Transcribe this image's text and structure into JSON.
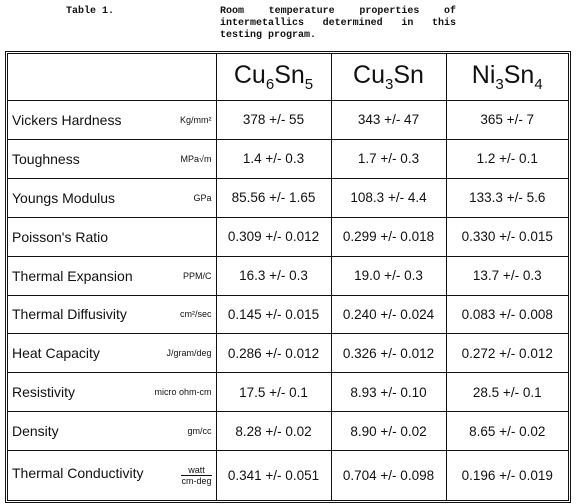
{
  "caption": {
    "label": "Table 1.",
    "text": "Room temperature properties of intermetallics determined in this testing program."
  },
  "table": {
    "columns": [
      "Cu6Sn5",
      "Cu3Sn",
      "Ni3Sn4"
    ],
    "rows": [
      {
        "property": "Vickers Hardness",
        "unit": "Kg/mm²",
        "values": [
          "378 +/- 55",
          "343 +/- 47",
          "365 +/- 7"
        ]
      },
      {
        "property": "Toughness",
        "unit": "MPa√m",
        "values": [
          "1.4 +/- 0.3",
          "1.7 +/- 0.3",
          "1.2 +/- 0.1"
        ]
      },
      {
        "property": "Youngs Modulus",
        "unit": "GPa",
        "values": [
          "85.56 +/- 1.65",
          "108.3 +/- 4.4",
          "133.3 +/- 5.6"
        ]
      },
      {
        "property": "Poisson's Ratio",
        "values": [
          "0.309 +/- 0.012",
          "0.299 +/- 0.018",
          "0.330 +/- 0.015"
        ]
      },
      {
        "property": "Thermal Expansion",
        "unit": "PPM/C",
        "values": [
          "16.3 +/- 0.3",
          "19.0 +/- 0.3",
          "13.7 +/- 0.3"
        ]
      },
      {
        "property": "Thermal Diffusivity",
        "unit": "cm²/sec",
        "values": [
          "0.145 +/- 0.015",
          "0.240 +/- 0.024",
          "0.083 +/- 0.008"
        ]
      },
      {
        "property": "Heat Capacity",
        "unit": "J/gram/deg",
        "values": [
          "0.286 +/- 0.012",
          "0.326 +/- 0.012",
          "0.272 +/- 0.012"
        ]
      },
      {
        "property": "Resistivity",
        "unit": "micro ohm-cm",
        "values": [
          "17.5 +/- 0.1",
          "8.93 +/- 0.10",
          "28.5 +/- 0.1"
        ]
      },
      {
        "property": "Density",
        "unit": "gm/cc",
        "values": [
          "8.28 +/- 0.02",
          "8.90 +/- 0.02",
          "8.65 +/- 0.02"
        ]
      },
      {
        "property": "Thermal Conductivity",
        "unit": {
          "numerator": "watt",
          "denominator": "cm-deg"
        },
        "values": [
          "0.341 +/- 0.051",
          "0.704 +/- 0.098",
          "0.196 +/- 0.019"
        ]
      }
    ]
  }
}
